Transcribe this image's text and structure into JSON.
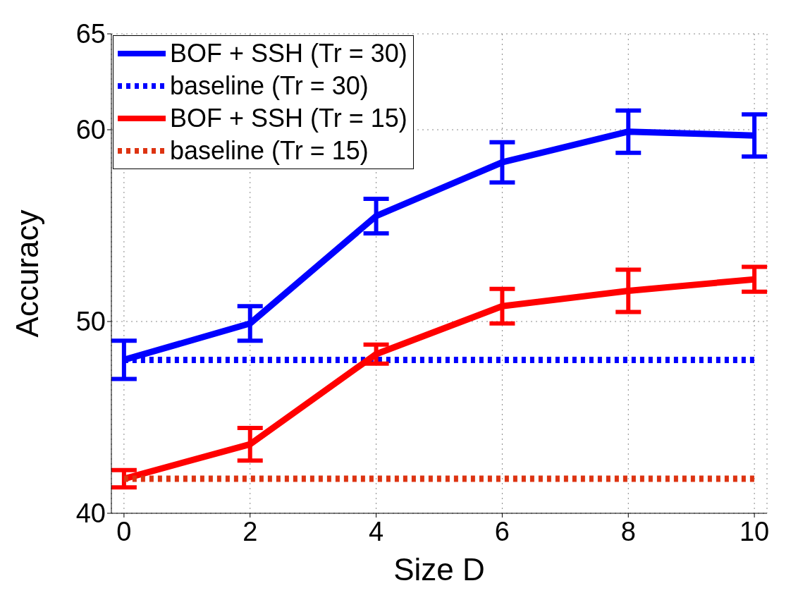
{
  "chart_data": {
    "type": "line",
    "xlabel": "Size D",
    "ylabel": "Accuracy",
    "x": [
      0,
      2,
      4,
      6,
      8,
      10
    ],
    "series": [
      {
        "name": "BOF + SSH (Tr = 30)",
        "color": "#0000ff",
        "values": [
          48.0,
          49.9,
          55.5,
          58.3,
          59.9,
          59.7
        ],
        "errors": [
          1,
          0.9,
          0.9,
          1.05,
          1.1,
          1.1
        ],
        "line_style": "solid"
      },
      {
        "name": "baseline (Tr = 30)",
        "color": "#0000ff",
        "values": [
          48.0,
          48.0,
          48.0,
          48.0,
          48.0,
          48.0
        ],
        "line_style": "dotted"
      },
      {
        "name": "BOF + SSH (Tr = 15)",
        "color": "#ff0000",
        "values": [
          41.8,
          43.6,
          48.3,
          50.8,
          51.6,
          52.2
        ],
        "errors": [
          0.45,
          0.85,
          0.5,
          0.9,
          1.1,
          0.65
        ],
        "line_style": "solid"
      },
      {
        "name": "baseline (Tr = 15)",
        "color": "#dd3311",
        "values": [
          41.8,
          41.8,
          41.8,
          41.8,
          41.8,
          41.8
        ],
        "line_style": "dotted"
      }
    ],
    "xlim": [
      -0.2,
      10.2
    ],
    "xticks": [
      0,
      2,
      4,
      6,
      8,
      10
    ],
    "ylim": [
      40,
      65
    ],
    "yticks": [
      40,
      50,
      60,
      65
    ],
    "grid": true,
    "legend": "top left",
    "marker": "none"
  }
}
